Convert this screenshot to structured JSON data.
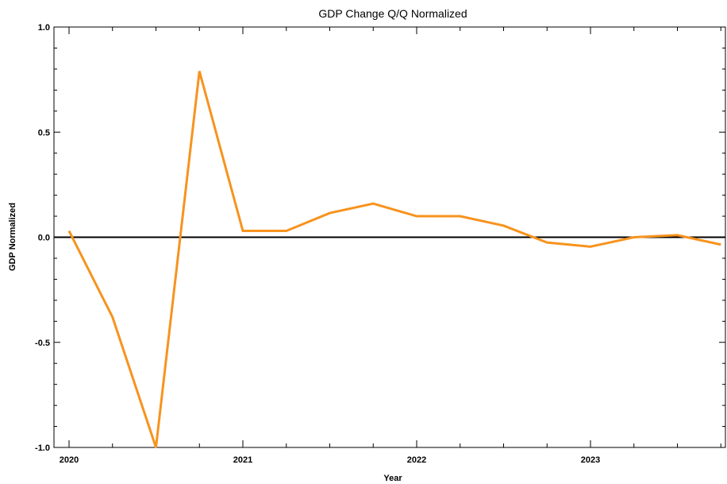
{
  "chart_data": {
    "type": "line",
    "title": "GDP Change Q/Q Normalized",
    "xlabel": "Year",
    "ylabel": "GDP Normalized",
    "xlim": [
      2020.0,
      2023.78
    ],
    "ylim": [
      -1.0,
      1.0
    ],
    "x_ticks": [
      {
        "value": 2020,
        "label": "2020"
      },
      {
        "value": 2021,
        "label": "2021"
      },
      {
        "value": 2022,
        "label": "2022"
      },
      {
        "value": 2023,
        "label": "2023"
      }
    ],
    "y_ticks": [
      {
        "value": 1.0,
        "label": "1.0"
      },
      {
        "value": 0.5,
        "label": "0.5"
      },
      {
        "value": 0.0,
        "label": "0.0"
      },
      {
        "value": -0.5,
        "label": "-0.5"
      },
      {
        "value": -1.0,
        "label": "-1.0"
      }
    ],
    "reference_line": 0.0,
    "grid": false,
    "series": [
      {
        "color": "#F7931E",
        "x": [
          2020.0,
          2020.25,
          2020.5,
          2020.75,
          2021.0,
          2021.25,
          2021.5,
          2021.75,
          2022.0,
          2022.25,
          2022.5,
          2022.75,
          2023.0,
          2023.25,
          2023.5,
          2023.75
        ],
        "y": [
          0.03,
          -0.38,
          -1.0,
          0.79,
          0.03,
          0.03,
          0.115,
          0.16,
          0.1,
          0.1,
          0.055,
          -0.025,
          -0.045,
          0.0,
          0.01,
          -0.035
        ]
      }
    ]
  }
}
